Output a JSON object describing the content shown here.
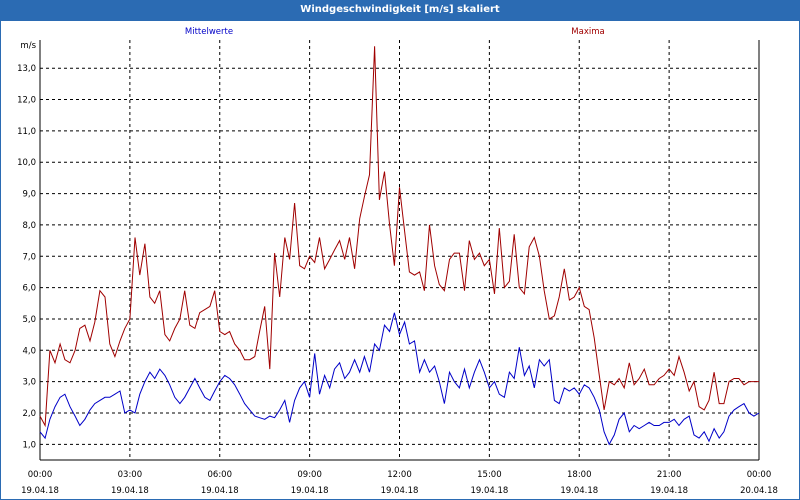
{
  "window": {
    "title": "Windgeschwindigkeit [m/s] skaliert"
  },
  "colors": {
    "mean": "#0000c8",
    "max": "#a00000",
    "grid": "#000000",
    "titlebar": "#2b6bb3"
  },
  "chart_data": {
    "type": "line",
    "title": "Windgeschwindigkeit [m/s] skaliert",
    "ylabel": "m/s",
    "xlabel": "",
    "ylim": [
      0.5,
      13.9
    ],
    "y_ticks": [
      "1,0",
      "2,0",
      "3,0",
      "4,0",
      "5,0",
      "6,0",
      "7,0",
      "8,0",
      "9,0",
      "10,0",
      "11,0",
      "12,0",
      "13,0"
    ],
    "x_ticks": [
      {
        "time": "00:00",
        "date": "19.04.18"
      },
      {
        "time": "03:00",
        "date": "19.04.18"
      },
      {
        "time": "06:00",
        "date": "19.04.18"
      },
      {
        "time": "09:00",
        "date": "19.04.18"
      },
      {
        "time": "12:00",
        "date": "19.04.18"
      },
      {
        "time": "15:00",
        "date": "19.04.18"
      },
      {
        "time": "18:00",
        "date": "19.04.18"
      },
      {
        "time": "21:00",
        "date": "19.04.18"
      },
      {
        "time": "00:00",
        "date": "20.04.18"
      }
    ],
    "x_unit": "hours from 19.04.18 00:00",
    "grid": true,
    "legend": [
      "Mittelwerte",
      "Maxima"
    ],
    "series": [
      {
        "name": "Mittelwerte",
        "color": "#0000c8",
        "points": [
          [
            0,
            1.4
          ],
          [
            0.17,
            1.2
          ],
          [
            0.33,
            1.8
          ],
          [
            0.5,
            2.2
          ],
          [
            0.67,
            2.5
          ],
          [
            0.83,
            2.6
          ],
          [
            1,
            2.2
          ],
          [
            1.17,
            1.9
          ],
          [
            1.33,
            1.6
          ],
          [
            1.5,
            1.8
          ],
          [
            1.67,
            2.1
          ],
          [
            1.83,
            2.3
          ],
          [
            2,
            2.4
          ],
          [
            2.17,
            2.5
          ],
          [
            2.33,
            2.5
          ],
          [
            2.5,
            2.6
          ],
          [
            2.67,
            2.7
          ],
          [
            2.83,
            2.0
          ],
          [
            3,
            2.1
          ],
          [
            3.17,
            2.0
          ],
          [
            3.33,
            2.6
          ],
          [
            3.5,
            3.0
          ],
          [
            3.67,
            3.3
          ],
          [
            3.83,
            3.1
          ],
          [
            4,
            3.4
          ],
          [
            4.17,
            3.2
          ],
          [
            4.33,
            2.9
          ],
          [
            4.5,
            2.5
          ],
          [
            4.67,
            2.3
          ],
          [
            4.83,
            2.5
          ],
          [
            5,
            2.8
          ],
          [
            5.17,
            3.1
          ],
          [
            5.33,
            2.8
          ],
          [
            5.5,
            2.5
          ],
          [
            5.67,
            2.4
          ],
          [
            5.83,
            2.7
          ],
          [
            6,
            3.0
          ],
          [
            6.17,
            3.2
          ],
          [
            6.33,
            3.1
          ],
          [
            6.5,
            2.9
          ],
          [
            6.67,
            2.6
          ],
          [
            6.83,
            2.3
          ],
          [
            7,
            2.1
          ],
          [
            7.17,
            1.9
          ],
          [
            7.33,
            1.85
          ],
          [
            7.5,
            1.8
          ],
          [
            7.67,
            1.9
          ],
          [
            7.83,
            1.85
          ],
          [
            8,
            2.1
          ],
          [
            8.17,
            2.4
          ],
          [
            8.33,
            1.7
          ],
          [
            8.5,
            2.4
          ],
          [
            8.67,
            2.8
          ],
          [
            8.83,
            3.0
          ],
          [
            9,
            2.5
          ],
          [
            9.17,
            3.9
          ],
          [
            9.33,
            2.6
          ],
          [
            9.5,
            3.2
          ],
          [
            9.67,
            2.8
          ],
          [
            9.83,
            3.4
          ],
          [
            10,
            3.6
          ],
          [
            10.17,
            3.1
          ],
          [
            10.33,
            3.3
          ],
          [
            10.5,
            3.7
          ],
          [
            10.67,
            3.3
          ],
          [
            10.83,
            3.8
          ],
          [
            11,
            3.3
          ],
          [
            11.17,
            4.2
          ],
          [
            11.33,
            4.0
          ],
          [
            11.5,
            4.8
          ],
          [
            11.67,
            4.6
          ],
          [
            11.83,
            5.2
          ],
          [
            12,
            4.5
          ],
          [
            12.17,
            4.9
          ],
          [
            12.33,
            4.2
          ],
          [
            12.5,
            4.3
          ],
          [
            12.67,
            3.3
          ],
          [
            12.83,
            3.7
          ],
          [
            13,
            3.3
          ],
          [
            13.17,
            3.5
          ],
          [
            13.33,
            3.0
          ],
          [
            13.5,
            2.3
          ],
          [
            13.67,
            3.3
          ],
          [
            13.83,
            3.0
          ],
          [
            14,
            2.8
          ],
          [
            14.17,
            3.4
          ],
          [
            14.33,
            2.8
          ],
          [
            14.5,
            3.3
          ],
          [
            14.67,
            3.7
          ],
          [
            14.83,
            3.3
          ],
          [
            15,
            2.8
          ],
          [
            15.17,
            3.0
          ],
          [
            15.33,
            2.6
          ],
          [
            15.5,
            2.5
          ],
          [
            15.67,
            3.3
          ],
          [
            15.83,
            3.1
          ],
          [
            16,
            4.1
          ],
          [
            16.17,
            3.2
          ],
          [
            16.33,
            3.5
          ],
          [
            16.5,
            2.8
          ],
          [
            16.67,
            3.7
          ],
          [
            16.83,
            3.5
          ],
          [
            17,
            3.7
          ],
          [
            17.17,
            2.4
          ],
          [
            17.33,
            2.3
          ],
          [
            17.5,
            2.8
          ],
          [
            17.67,
            2.7
          ],
          [
            17.83,
            2.8
          ],
          [
            18,
            2.6
          ],
          [
            18.17,
            2.9
          ],
          [
            18.33,
            2.8
          ],
          [
            18.5,
            2.5
          ],
          [
            18.67,
            2.1
          ],
          [
            18.83,
            1.4
          ],
          [
            19,
            1.0
          ],
          [
            19.17,
            1.3
          ],
          [
            19.33,
            1.8
          ],
          [
            19.5,
            2.0
          ],
          [
            19.67,
            1.4
          ],
          [
            19.83,
            1.6
          ],
          [
            20,
            1.5
          ],
          [
            20.17,
            1.6
          ],
          [
            20.33,
            1.7
          ],
          [
            20.5,
            1.6
          ],
          [
            20.67,
            1.6
          ],
          [
            20.83,
            1.7
          ],
          [
            21,
            1.7
          ],
          [
            21.17,
            1.8
          ],
          [
            21.33,
            1.6
          ],
          [
            21.5,
            1.8
          ],
          [
            21.67,
            1.9
          ],
          [
            21.83,
            1.3
          ],
          [
            22,
            1.2
          ],
          [
            22.17,
            1.4
          ],
          [
            22.33,
            1.1
          ],
          [
            22.5,
            1.5
          ],
          [
            22.67,
            1.2
          ],
          [
            22.83,
            1.4
          ],
          [
            23,
            1.9
          ],
          [
            23.17,
            2.1
          ],
          [
            23.33,
            2.2
          ],
          [
            23.5,
            2.3
          ],
          [
            23.67,
            2.0
          ],
          [
            23.83,
            1.9
          ],
          [
            24,
            2.0
          ]
        ]
      },
      {
        "name": "Maxima",
        "color": "#a00000",
        "points": [
          [
            0,
            1.9
          ],
          [
            0.17,
            1.6
          ],
          [
            0.33,
            4.0
          ],
          [
            0.5,
            3.6
          ],
          [
            0.67,
            4.2
          ],
          [
            0.83,
            3.7
          ],
          [
            1,
            3.6
          ],
          [
            1.17,
            4.0
          ],
          [
            1.33,
            4.7
          ],
          [
            1.5,
            4.8
          ],
          [
            1.67,
            4.3
          ],
          [
            1.83,
            4.9
          ],
          [
            2,
            5.9
          ],
          [
            2.17,
            5.7
          ],
          [
            2.33,
            4.2
          ],
          [
            2.5,
            3.8
          ],
          [
            2.67,
            4.3
          ],
          [
            2.83,
            4.7
          ],
          [
            3,
            5.0
          ],
          [
            3.17,
            7.6
          ],
          [
            3.33,
            6.4
          ],
          [
            3.5,
            7.4
          ],
          [
            3.67,
            5.7
          ],
          [
            3.83,
            5.5
          ],
          [
            4,
            5.9
          ],
          [
            4.17,
            4.5
          ],
          [
            4.33,
            4.3
          ],
          [
            4.5,
            4.7
          ],
          [
            4.67,
            5.0
          ],
          [
            4.83,
            5.9
          ],
          [
            5,
            4.8
          ],
          [
            5.17,
            4.7
          ],
          [
            5.33,
            5.2
          ],
          [
            5.5,
            5.3
          ],
          [
            5.67,
            5.4
          ],
          [
            5.83,
            5.9
          ],
          [
            6,
            4.6
          ],
          [
            6.17,
            4.5
          ],
          [
            6.33,
            4.6
          ],
          [
            6.5,
            4.2
          ],
          [
            6.67,
            4.0
          ],
          [
            6.83,
            3.7
          ],
          [
            7,
            3.7
          ],
          [
            7.17,
            3.8
          ],
          [
            7.33,
            4.6
          ],
          [
            7.5,
            5.4
          ],
          [
            7.67,
            3.4
          ],
          [
            7.83,
            7.1
          ],
          [
            8,
            5.7
          ],
          [
            8.17,
            7.6
          ],
          [
            8.33,
            6.9
          ],
          [
            8.5,
            8.7
          ],
          [
            8.67,
            6.7
          ],
          [
            8.83,
            6.6
          ],
          [
            9,
            7.0
          ],
          [
            9.17,
            6.8
          ],
          [
            9.33,
            7.6
          ],
          [
            9.5,
            6.6
          ],
          [
            9.67,
            6.9
          ],
          [
            9.83,
            7.2
          ],
          [
            10,
            7.5
          ],
          [
            10.17,
            6.9
          ],
          [
            10.33,
            7.6
          ],
          [
            10.5,
            6.6
          ],
          [
            10.67,
            8.2
          ],
          [
            10.83,
            8.9
          ],
          [
            11,
            9.6
          ],
          [
            11.17,
            13.7
          ],
          [
            11.33,
            8.8
          ],
          [
            11.5,
            9.7
          ],
          [
            11.67,
            8.0
          ],
          [
            11.83,
            6.7
          ],
          [
            12,
            9.2
          ],
          [
            12.17,
            7.8
          ],
          [
            12.33,
            6.5
          ],
          [
            12.5,
            6.4
          ],
          [
            12.67,
            6.5
          ],
          [
            12.83,
            5.9
          ],
          [
            13,
            8.0
          ],
          [
            13.17,
            6.7
          ],
          [
            13.33,
            6.1
          ],
          [
            13.5,
            5.9
          ],
          [
            13.67,
            6.9
          ],
          [
            13.83,
            7.1
          ],
          [
            14,
            7.1
          ],
          [
            14.17,
            5.9
          ],
          [
            14.33,
            7.5
          ],
          [
            14.5,
            6.9
          ],
          [
            14.67,
            7.1
          ],
          [
            14.83,
            6.7
          ],
          [
            15,
            6.9
          ],
          [
            15.17,
            5.8
          ],
          [
            15.33,
            7.9
          ],
          [
            15.5,
            6.0
          ],
          [
            15.67,
            6.2
          ],
          [
            15.83,
            7.7
          ],
          [
            16,
            6.0
          ],
          [
            16.17,
            5.8
          ],
          [
            16.33,
            7.3
          ],
          [
            16.5,
            7.6
          ],
          [
            16.67,
            7.0
          ],
          [
            16.83,
            5.9
          ],
          [
            17,
            5.0
          ],
          [
            17.17,
            5.1
          ],
          [
            17.33,
            5.7
          ],
          [
            17.5,
            6.6
          ],
          [
            17.67,
            5.6
          ],
          [
            17.83,
            5.7
          ],
          [
            18,
            6.0
          ],
          [
            18.17,
            5.4
          ],
          [
            18.33,
            5.3
          ],
          [
            18.5,
            4.4
          ],
          [
            18.67,
            3.2
          ],
          [
            18.83,
            2.1
          ],
          [
            19,
            3.0
          ],
          [
            19.17,
            2.9
          ],
          [
            19.33,
            3.1
          ],
          [
            19.5,
            2.8
          ],
          [
            19.67,
            3.6
          ],
          [
            19.83,
            2.9
          ],
          [
            20,
            3.1
          ],
          [
            20.17,
            3.4
          ],
          [
            20.33,
            2.9
          ],
          [
            20.5,
            2.9
          ],
          [
            20.67,
            3.1
          ],
          [
            20.83,
            3.2
          ],
          [
            21,
            3.4
          ],
          [
            21.17,
            3.2
          ],
          [
            21.33,
            3.8
          ],
          [
            21.5,
            3.3
          ],
          [
            21.67,
            2.7
          ],
          [
            21.83,
            3.0
          ],
          [
            22,
            2.2
          ],
          [
            22.17,
            2.1
          ],
          [
            22.33,
            2.4
          ],
          [
            22.5,
            3.3
          ],
          [
            22.67,
            2.3
          ],
          [
            22.83,
            2.3
          ],
          [
            23,
            3.0
          ],
          [
            23.17,
            3.1
          ],
          [
            23.33,
            3.1
          ],
          [
            23.5,
            2.9
          ],
          [
            23.67,
            3.0
          ],
          [
            24,
            3.0
          ]
        ]
      }
    ]
  }
}
